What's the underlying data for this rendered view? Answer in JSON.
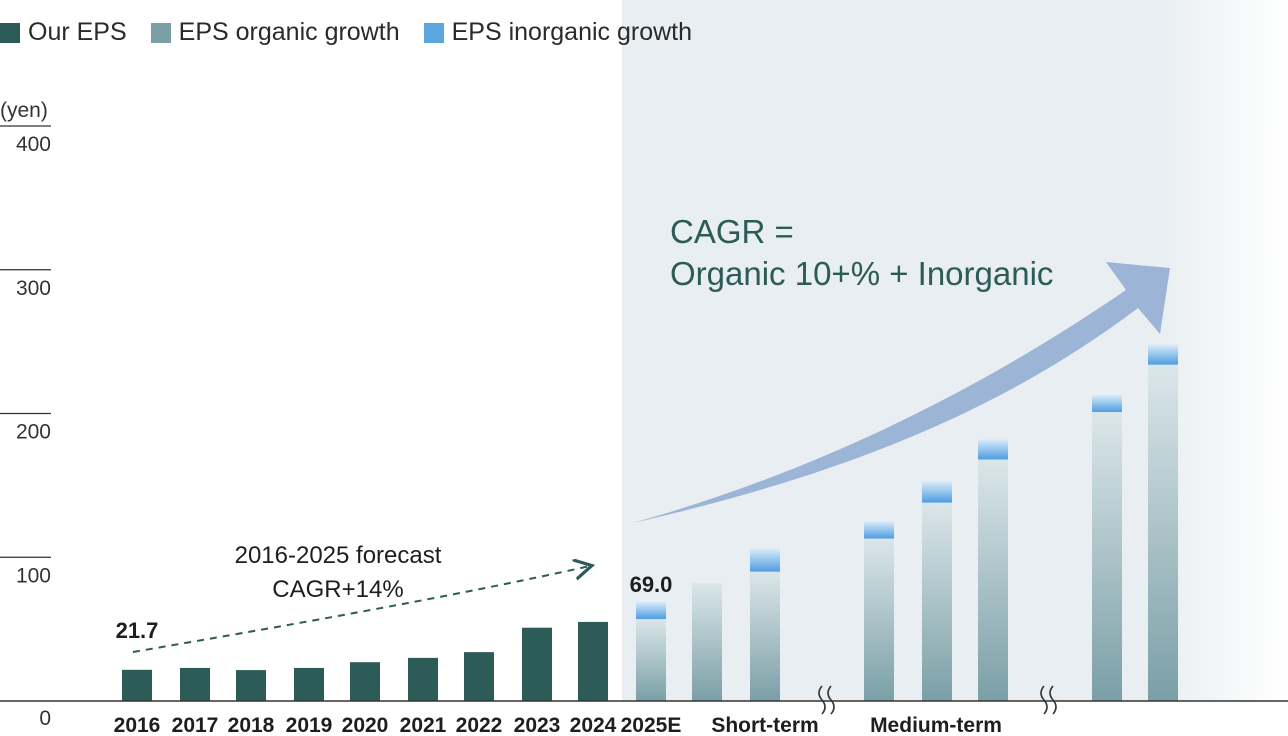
{
  "chart_data": {
    "type": "bar",
    "unit_label": "(yen)",
    "y_ticks": [
      "400",
      "300",
      "200",
      "100",
      "0"
    ],
    "ylim": [
      0,
      400
    ],
    "legend": [
      {
        "name": "Our EPS",
        "color": "#2d5c58"
      },
      {
        "name": "EPS organic growth",
        "color": "#7a9fa6"
      },
      {
        "name": "EPS inorganic growth",
        "color": "#5ca6e0"
      }
    ],
    "actual": {
      "series_name": "Our EPS",
      "categories": [
        "2016",
        "2017",
        "2018",
        "2019",
        "2020",
        "2021",
        "2022",
        "2023",
        "2024"
      ],
      "values": [
        21.7,
        23,
        21.5,
        23,
        27,
        30,
        34,
        51,
        55
      ]
    },
    "forecast": [
      {
        "label": "2025E",
        "organic": 57,
        "inorganic": 12
      },
      {
        "label": "",
        "organic": 82,
        "inorganic": 0
      },
      {
        "label": "",
        "organic": 90,
        "inorganic": 16
      },
      {
        "label": "",
        "organic": 113,
        "inorganic": 12
      },
      {
        "label": "",
        "organic": 138,
        "inorganic": 15
      },
      {
        "label": "",
        "organic": 168,
        "inorganic": 14
      },
      {
        "label": "",
        "organic": 201,
        "inorganic": 12
      },
      {
        "label": "",
        "organic": 234,
        "inorganic": 14
      }
    ],
    "period_labels": [
      "Short-term",
      "Medium-term"
    ],
    "data_labels": [
      {
        "category": "2016",
        "text": "21.7"
      },
      {
        "category": "2025E",
        "text": "69.0"
      }
    ],
    "annotations": {
      "forecast_cagr_line1": "2016-2025 forecast",
      "forecast_cagr_line2": "CAGR+14%",
      "cagr_line1": "CAGR =",
      "cagr_line2": "Organic 10+% + Inorganic"
    }
  }
}
